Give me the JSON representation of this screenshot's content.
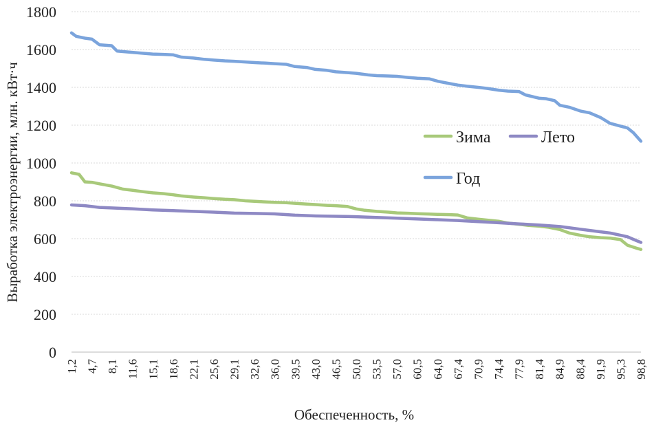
{
  "chart_data": {
    "type": "line",
    "title": "",
    "xlabel": "Обеспеченность, %",
    "ylabel": "Выработка электроэнергии, млн. кВт·ч",
    "ylim": [
      0,
      1800
    ],
    "yticks": [
      "0",
      "200",
      "400",
      "600",
      "800",
      "1000",
      "1200",
      "1400",
      "1600",
      "1800"
    ],
    "xlim": [
      1.2,
      98.8
    ],
    "xtick_labels": [
      "1,2",
      "4,7",
      "8,1",
      "11,6",
      "15,1",
      "18,6",
      "22,1",
      "25,6",
      "29,1",
      "32,6",
      "36,0",
      "39,5",
      "43,0",
      "46,5",
      "50,0",
      "53,5",
      "57,0",
      "60,5",
      "64,0",
      "67,4",
      "70,9",
      "74,4",
      "77,9",
      "81,4",
      "84,9",
      "88,4",
      "91,9",
      "95,3",
      "98,8"
    ],
    "grid": "horizontal",
    "legend_placement": "right",
    "series": [
      {
        "name": "Зима",
        "color": "#a8c97a",
        "x": [
          1.2,
          2.5,
          3.5,
          4.7,
          6.0,
          8.1,
          10.0,
          11.6,
          13.5,
          15.1,
          17.0,
          18.6,
          20.0,
          22.1,
          24.0,
          25.6,
          27.5,
          29.1,
          31.0,
          32.6,
          34.5,
          36.0,
          38.0,
          39.5,
          41.5,
          43.0,
          45.0,
          46.5,
          48.5,
          50.0,
          51.5,
          53.5,
          55.5,
          57.0,
          59.0,
          60.5,
          62.5,
          64.0,
          66.0,
          67.4,
          69.0,
          70.9,
          72.5,
          74.4,
          76.0,
          77.9,
          79.5,
          81.4,
          83.0,
          84.9,
          86.5,
          88.4,
          90.0,
          91.9,
          93.5,
          95.3,
          96.5,
          98.0,
          98.8
        ],
        "values": [
          948,
          940,
          900,
          898,
          890,
          878,
          862,
          856,
          848,
          842,
          838,
          832,
          826,
          820,
          816,
          812,
          808,
          806,
          800,
          797,
          794,
          792,
          790,
          787,
          783,
          780,
          776,
          774,
          770,
          757,
          750,
          744,
          740,
          736,
          734,
          732,
          730,
          728,
          727,
          725,
          710,
          703,
          698,
          692,
          682,
          676,
          670,
          666,
          660,
          648,
          630,
          618,
          610,
          605,
          603,
          595,
          565,
          550,
          543
        ]
      },
      {
        "name": "Лето",
        "color": "#8e89c4",
        "x": [
          1.2,
          3.5,
          6.0,
          8.1,
          11.6,
          15.1,
          18.6,
          22.1,
          25.6,
          29.1,
          32.6,
          36.0,
          39.5,
          43.0,
          46.5,
          50.0,
          53.5,
          57.0,
          60.5,
          64.0,
          67.4,
          70.9,
          74.4,
          77.9,
          81.4,
          84.9,
          88.4,
          91.9,
          93.5,
          95.3,
          96.5,
          98.0,
          98.8
        ],
        "values": [
          778,
          774,
          765,
          762,
          758,
          752,
          748,
          744,
          740,
          735,
          733,
          731,
          724,
          720,
          718,
          716,
          712,
          708,
          704,
          700,
          696,
          690,
          684,
          678,
          672,
          664,
          650,
          636,
          630,
          618,
          610,
          590,
          580
        ]
      },
      {
        "name": "Год",
        "color": "#7ba4dc",
        "x": [
          1.2,
          2.0,
          3.5,
          4.7,
          6.0,
          8.1,
          9.0,
          11.6,
          13.5,
          15.1,
          17.0,
          18.6,
          20.0,
          22.1,
          24.0,
          25.6,
          27.5,
          29.1,
          31.0,
          32.6,
          34.5,
          36.0,
          38.0,
          39.5,
          41.5,
          43.0,
          45.0,
          46.5,
          48.5,
          50.0,
          52.0,
          53.5,
          55.5,
          57.0,
          59.0,
          60.5,
          62.5,
          64.0,
          66.0,
          67.4,
          69.0,
          70.9,
          72.5,
          74.4,
          76.0,
          77.9,
          79.0,
          81.4,
          82.5,
          84.0,
          84.9,
          86.5,
          88.4,
          90.0,
          91.9,
          93.5,
          95.3,
          96.5,
          97.5,
          98.8
        ],
        "values": [
          1688,
          1670,
          1660,
          1655,
          1625,
          1620,
          1592,
          1585,
          1580,
          1576,
          1574,
          1572,
          1560,
          1555,
          1548,
          1544,
          1540,
          1538,
          1534,
          1531,
          1528,
          1525,
          1522,
          1510,
          1505,
          1495,
          1490,
          1482,
          1478,
          1474,
          1466,
          1462,
          1460,
          1458,
          1452,
          1448,
          1445,
          1432,
          1420,
          1412,
          1406,
          1400,
          1394,
          1385,
          1380,
          1378,
          1360,
          1342,
          1340,
          1330,
          1305,
          1295,
          1275,
          1265,
          1240,
          1210,
          1195,
          1185,
          1160,
          1115
        ]
      }
    ]
  }
}
